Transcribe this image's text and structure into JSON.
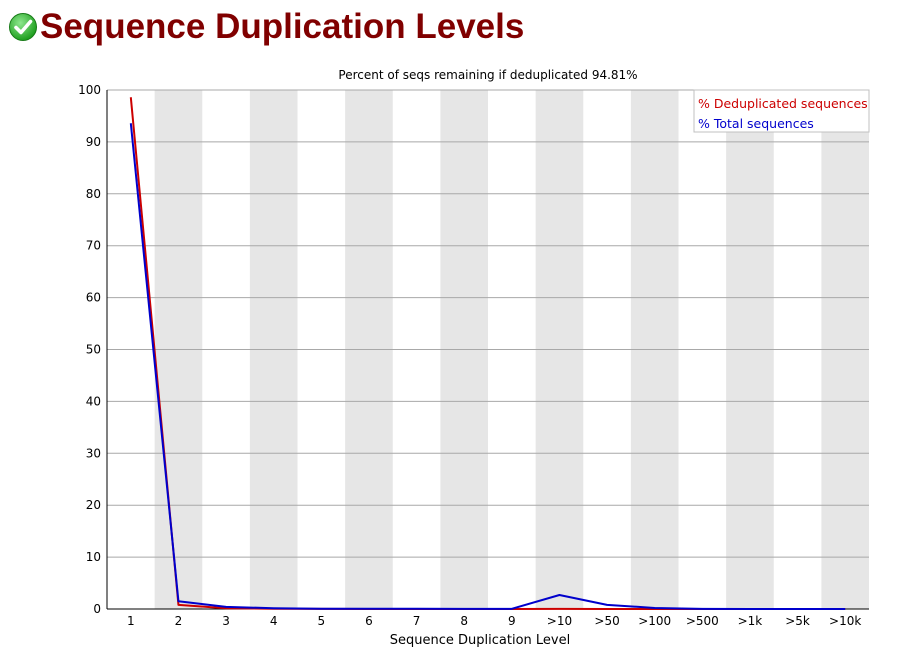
{
  "header": {
    "title": "Sequence Duplication Levels",
    "status_icon": "check-circle-icon",
    "status_color": "#2eb82e"
  },
  "chart_data": {
    "type": "line",
    "title": "Percent of seqs remaining if deduplicated 94.81%",
    "xlabel": "Sequence Duplication Level",
    "ylabel": "",
    "categories": [
      "1",
      "2",
      "3",
      "4",
      "5",
      "6",
      "7",
      "8",
      "9",
      ">10",
      ">50",
      ">100",
      ">500",
      ">1k",
      ">5k",
      ">10k"
    ],
    "ylim": [
      0,
      100
    ],
    "yticks": [
      0,
      10,
      20,
      30,
      40,
      50,
      60,
      70,
      80,
      90,
      100
    ],
    "grid": true,
    "legend_position": "top-right",
    "series": [
      {
        "name": "% Deduplicated sequences",
        "color": "#cc0000",
        "values": [
          98.6,
          0.8,
          0.15,
          0.05,
          0.02,
          0.01,
          0.01,
          0.01,
          0.01,
          0.02,
          0.01,
          0.0,
          0.0,
          0.0,
          0.0,
          0.0
        ]
      },
      {
        "name": "% Total sequences",
        "color": "#0000cc",
        "values": [
          93.6,
          1.5,
          0.4,
          0.15,
          0.05,
          0.05,
          0.04,
          0.03,
          0.03,
          2.7,
          0.8,
          0.2,
          0.02,
          0.0,
          0.0,
          0.0
        ]
      }
    ]
  }
}
